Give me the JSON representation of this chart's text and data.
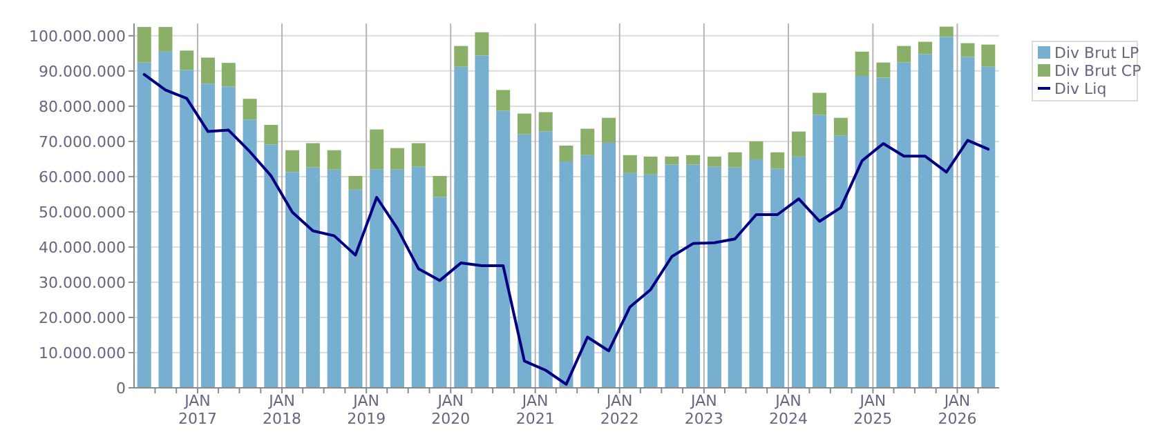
{
  "chart_data": {
    "type": "bar",
    "stacked": true,
    "x": [
      "2016-05-15",
      "2016-08-15",
      "2016-11-15",
      "2017-02-15",
      "2017-05-15",
      "2017-08-15",
      "2017-11-15",
      "2018-02-15",
      "2018-05-15",
      "2018-08-15",
      "2018-11-15",
      "2019-02-15",
      "2019-05-15",
      "2019-08-15",
      "2019-11-15",
      "2020-02-15",
      "2020-05-15",
      "2020-08-15",
      "2020-11-15",
      "2021-02-15",
      "2021-05-15",
      "2021-08-15",
      "2021-11-15",
      "2022-02-15",
      "2022-05-15",
      "2022-08-15",
      "2022-11-15",
      "2023-02-15",
      "2023-05-15",
      "2023-08-15",
      "2023-11-15",
      "2024-02-15",
      "2024-05-15",
      "2024-08-15",
      "2024-11-15",
      "2025-02-15",
      "2025-05-15",
      "2025-08-15",
      "2025-11-15",
      "2026-02-15",
      "2026-05-15"
    ],
    "series": [
      {
        "name": "Div Brut LP",
        "color": "#77afd1",
        "values": [
          92400000,
          95500000,
          90300000,
          86400000,
          85600000,
          76200000,
          69100000,
          61300000,
          62600000,
          62000000,
          56300000,
          62000000,
          62000000,
          62800000,
          54200000,
          91200000,
          94400000,
          78700000,
          72000000,
          72800000,
          64300000,
          66100000,
          69600000,
          61000000,
          60600000,
          63400000,
          63400000,
          62800000,
          62600000,
          64900000,
          62200000,
          65700000,
          77500000,
          71600000,
          88600000,
          88100000,
          92400000,
          94800000,
          99700000,
          94000000,
          91200000
        ]
      },
      {
        "name": "Div Brut CP",
        "color": "#8aaf69",
        "values": [
          10100000,
          7000000,
          5500000,
          7400000,
          6700000,
          5900000,
          5600000,
          6200000,
          6900000,
          5500000,
          3900000,
          11400000,
          6100000,
          6700000,
          6000000,
          5900000,
          6600000,
          5900000,
          5900000,
          5500000,
          4500000,
          7500000,
          7100000,
          5100000,
          5100000,
          2300000,
          2700000,
          2900000,
          4300000,
          5100000,
          4700000,
          7100000,
          6300000,
          5100000,
          6900000,
          4300000,
          4700000,
          3500000,
          2900000,
          3900000,
          6300000
        ]
      },
      {
        "name": "Div Liq",
        "type": "line",
        "color": "#000080",
        "values": [
          89000000,
          84600000,
          82200000,
          72800000,
          73200000,
          67100000,
          60200000,
          49900000,
          44600000,
          43200000,
          37700000,
          54100000,
          45300000,
          33800000,
          30500000,
          35500000,
          34700000,
          34700000,
          7600000,
          5000000,
          1000000,
          14400000,
          10500000,
          23000000,
          27900000,
          37300000,
          41000000,
          41200000,
          42300000,
          49200000,
          49200000,
          53700000,
          47300000,
          51200000,
          64500000,
          69400000,
          65800000,
          65800000,
          61300000,
          70300000,
          67800000
        ]
      }
    ],
    "xlim": [
      "2016-04-01",
      "2026-07-01"
    ],
    "xticks": [
      {
        "value": "2016-07-01",
        "label": null
      },
      {
        "value": "2016-10-01",
        "label": null
      },
      {
        "value": "2017-01-01",
        "label": "JAN\n2017"
      },
      {
        "value": "2017-04-01",
        "label": null
      },
      {
        "value": "2017-07-01",
        "label": null
      },
      {
        "value": "2017-10-01",
        "label": null
      },
      {
        "value": "2018-01-01",
        "label": "JAN\n2018"
      },
      {
        "value": "2018-04-01",
        "label": null
      },
      {
        "value": "2018-07-01",
        "label": null
      },
      {
        "value": "2018-10-01",
        "label": null
      },
      {
        "value": "2019-01-01",
        "label": "JAN\n2019"
      },
      {
        "value": "2019-04-01",
        "label": null
      },
      {
        "value": "2019-07-01",
        "label": null
      },
      {
        "value": "2019-10-01",
        "label": null
      },
      {
        "value": "2020-01-01",
        "label": "JAN\n2020"
      },
      {
        "value": "2020-04-01",
        "label": null
      },
      {
        "value": "2020-07-01",
        "label": null
      },
      {
        "value": "2020-10-01",
        "label": null
      },
      {
        "value": "2021-01-01",
        "label": "JAN\n2021"
      },
      {
        "value": "2021-04-01",
        "label": null
      },
      {
        "value": "2021-07-01",
        "label": null
      },
      {
        "value": "2021-10-01",
        "label": null
      },
      {
        "value": "2022-01-01",
        "label": "JAN\n2022"
      },
      {
        "value": "2022-04-01",
        "label": null
      },
      {
        "value": "2022-07-01",
        "label": null
      },
      {
        "value": "2022-10-01",
        "label": null
      },
      {
        "value": "2023-01-01",
        "label": "JAN\n2023"
      },
      {
        "value": "2023-04-01",
        "label": null
      },
      {
        "value": "2023-07-01",
        "label": null
      },
      {
        "value": "2023-10-01",
        "label": null
      },
      {
        "value": "2024-01-01",
        "label": "JAN\n2024"
      },
      {
        "value": "2024-04-01",
        "label": null
      },
      {
        "value": "2024-07-01",
        "label": null
      },
      {
        "value": "2024-10-01",
        "label": null
      },
      {
        "value": "2025-01-01",
        "label": "JAN\n2025"
      },
      {
        "value": "2025-04-01",
        "label": null
      },
      {
        "value": "2025-07-01",
        "label": null
      },
      {
        "value": "2025-10-01",
        "label": null
      },
      {
        "value": "2026-01-01",
        "label": "JAN\n2026"
      },
      {
        "value": "2026-04-01",
        "label": null
      }
    ],
    "ylim": [
      0,
      103500000
    ],
    "yticks": [
      {
        "value": 0,
        "label": "0"
      },
      {
        "value": 10000000,
        "label": "10.000.000"
      },
      {
        "value": 20000000,
        "label": "20.000.000"
      },
      {
        "value": 30000000,
        "label": "30.000.000"
      },
      {
        "value": 40000000,
        "label": "40.000.000"
      },
      {
        "value": 50000000,
        "label": "50.000.000"
      },
      {
        "value": 60000000,
        "label": "60.000.000"
      },
      {
        "value": 70000000,
        "label": "70.000.000"
      },
      {
        "value": 80000000,
        "label": "80.000.000"
      },
      {
        "value": 90000000,
        "label": "90.000.000"
      },
      {
        "value": 100000000,
        "label": "100.000.000"
      }
    ],
    "grid": true,
    "legend": "right",
    "marker": "none",
    "line_style": "solid"
  }
}
